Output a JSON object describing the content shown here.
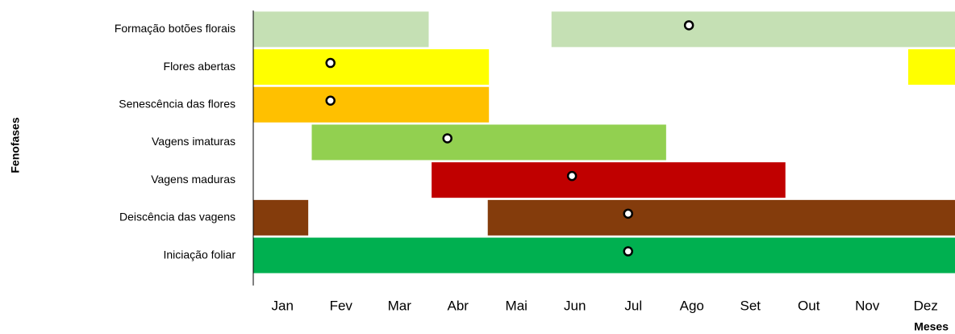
{
  "chart_data": {
    "type": "gantt",
    "x_label": "Meses",
    "y_label": "Fenofases",
    "xlim": [
      0,
      12
    ],
    "xticks": [
      {
        "value": 0.5,
        "label": "Jan"
      },
      {
        "value": 1.5,
        "label": "Fev"
      },
      {
        "value": 2.5,
        "label": "Mar"
      },
      {
        "value": 3.5,
        "label": "Abr"
      },
      {
        "value": 4.5,
        "label": "Mai"
      },
      {
        "value": 5.5,
        "label": "Jun"
      },
      {
        "value": 6.5,
        "label": "Jul"
      },
      {
        "value": 7.5,
        "label": "Ago"
      },
      {
        "value": 8.5,
        "label": "Set"
      },
      {
        "value": 9.5,
        "label": "Out"
      },
      {
        "value": 10.5,
        "label": "Nov"
      },
      {
        "value": 11.5,
        "label": "Dez"
      }
    ],
    "series": [
      {
        "name": "Formação botões florais",
        "color": "#c5e0b4",
        "segments": [
          [
            0,
            3
          ],
          [
            5.1,
            12
          ]
        ],
        "point": 7.45
      },
      {
        "name": "Flores abertas",
        "color": "#ffff00",
        "segments": [
          [
            0,
            4.03
          ],
          [
            11.2,
            12
          ]
        ],
        "point": 1.32
      },
      {
        "name": "Senescência das flores",
        "color": "#ffc000",
        "segments": [
          [
            0,
            4.03
          ]
        ],
        "point": 1.32
      },
      {
        "name": "Vagens imaturas",
        "color": "#92d050",
        "segments": [
          [
            1,
            7.06
          ]
        ],
        "point": 3.32
      },
      {
        "name": "Vagens maduras",
        "color": "#c00000",
        "segments": [
          [
            3.05,
            9.1
          ]
        ],
        "point": 5.45
      },
      {
        "name": "Deiscência das vagens",
        "color": "#843c0c",
        "segments": [
          [
            0,
            0.94
          ],
          [
            4.01,
            12
          ]
        ],
        "point": 6.41
      },
      {
        "name": "Iniciação foliar",
        "color": "#00b050",
        "segments": [
          [
            0,
            12
          ]
        ],
        "point": 6.41
      }
    ]
  }
}
